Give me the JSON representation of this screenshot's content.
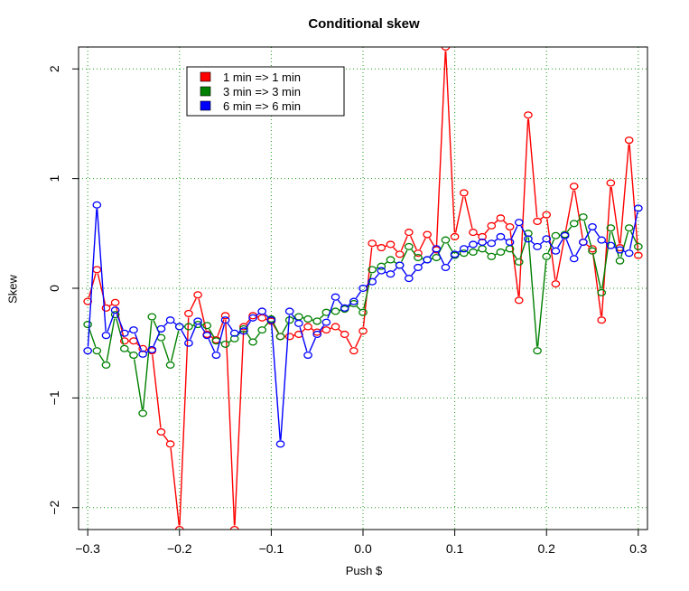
{
  "chart_data": {
    "type": "line",
    "title": "Conditional skew",
    "xlabel": "Push $",
    "ylabel": "Skew",
    "xlim": [
      -0.31,
      0.31
    ],
    "ylim": [
      -2.2,
      2.2
    ],
    "xticks": [
      -0.3,
      -0.2,
      -0.1,
      0.0,
      0.1,
      0.2,
      0.3
    ],
    "xtick_labels": [
      "−0.3",
      "−0.2",
      "−0.1",
      "0.0",
      "0.1",
      "0.2",
      "0.3"
    ],
    "yticks": [
      -2,
      -1,
      0,
      1,
      2
    ],
    "ytick_labels": [
      "−2",
      "−1",
      "0",
      "1",
      "2"
    ],
    "grid": true,
    "legend_position": "top-left",
    "x": [
      -0.3,
      -0.29,
      -0.28,
      -0.27,
      -0.26,
      -0.25,
      -0.24,
      -0.23,
      -0.22,
      -0.21,
      -0.2,
      -0.19,
      -0.18,
      -0.17,
      -0.16,
      -0.15,
      -0.14,
      -0.13,
      -0.12,
      -0.11,
      -0.1,
      -0.09,
      -0.08,
      -0.07,
      -0.06,
      -0.05,
      -0.04,
      -0.03,
      -0.02,
      -0.01,
      0.0,
      0.01,
      0.02,
      0.03,
      0.04,
      0.05,
      0.06,
      0.07,
      0.08,
      0.09,
      0.1,
      0.11,
      0.12,
      0.13,
      0.14,
      0.15,
      0.16,
      0.17,
      0.18,
      0.19,
      0.2,
      0.21,
      0.22,
      0.23,
      0.24,
      0.25,
      0.26,
      0.27,
      0.28,
      0.29,
      0.3
    ],
    "series": [
      {
        "name": "1 min => 1 min",
        "color": "#ff0000",
        "values": [
          -0.12,
          0.17,
          -0.18,
          -0.13,
          -0.48,
          -0.48,
          -0.55,
          -0.57,
          -1.31,
          -1.42,
          -2.2,
          -0.23,
          -0.06,
          -0.42,
          -0.47,
          -0.25,
          -2.2,
          -0.35,
          -0.25,
          -0.27,
          -0.3,
          -0.44,
          -0.44,
          -0.42,
          -0.35,
          -0.4,
          -0.38,
          -0.35,
          -0.42,
          -0.57,
          -0.39,
          0.41,
          0.37,
          0.4,
          0.31,
          0.51,
          0.32,
          0.49,
          0.35,
          2.2,
          0.47,
          0.87,
          0.51,
          0.47,
          0.57,
          0.64,
          0.56,
          -0.11,
          1.58,
          0.61,
          0.67,
          0.04,
          0.48,
          0.93,
          0.42,
          0.36,
          -0.29,
          0.96,
          0.37,
          1.35,
          0.3
        ]
      },
      {
        "name": "3 min => 3 min",
        "color": "#008000",
        "values": [
          -0.33,
          -0.57,
          -0.7,
          -0.24,
          -0.55,
          -0.61,
          -1.14,
          -0.26,
          -0.45,
          -0.7,
          -0.35,
          -0.35,
          -0.33,
          -0.34,
          -0.48,
          -0.51,
          -0.46,
          -0.37,
          -0.49,
          -0.38,
          -0.28,
          -0.44,
          -0.29,
          -0.26,
          -0.28,
          -0.3,
          -0.22,
          -0.21,
          -0.19,
          -0.14,
          -0.22,
          0.17,
          0.2,
          0.26,
          0.21,
          0.38,
          0.28,
          0.26,
          0.28,
          0.44,
          0.3,
          0.32,
          0.33,
          0.36,
          0.29,
          0.33,
          0.36,
          0.24,
          0.5,
          -0.57,
          0.29,
          0.48,
          0.49,
          0.59,
          0.65,
          0.34,
          -0.04,
          0.55,
          0.25,
          0.55,
          0.38
        ]
      },
      {
        "name": "6 min => 6 min",
        "color": "#0000ff",
        "values": [
          -0.57,
          0.76,
          -0.43,
          -0.2,
          -0.41,
          -0.38,
          -0.6,
          -0.56,
          -0.37,
          -0.29,
          -0.35,
          -0.5,
          -0.3,
          -0.43,
          -0.61,
          -0.29,
          -0.41,
          -0.39,
          -0.27,
          -0.21,
          -0.29,
          -1.42,
          -0.21,
          -0.32,
          -0.61,
          -0.42,
          -0.31,
          -0.08,
          -0.18,
          -0.12,
          0.0,
          0.06,
          0.16,
          0.13,
          0.21,
          0.09,
          0.19,
          0.26,
          0.36,
          0.19,
          0.31,
          0.36,
          0.4,
          0.42,
          0.41,
          0.47,
          0.42,
          0.6,
          0.45,
          0.38,
          0.45,
          0.34,
          0.48,
          0.27,
          0.42,
          0.56,
          0.44,
          0.39,
          0.35,
          0.32,
          0.73
        ]
      }
    ]
  }
}
